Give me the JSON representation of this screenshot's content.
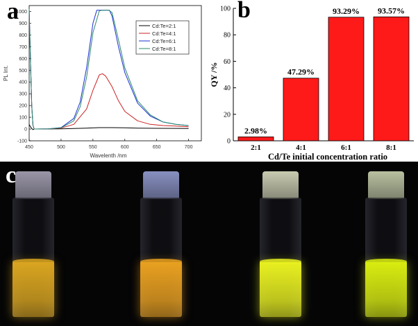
{
  "panels": {
    "a": "a",
    "b": "b",
    "c": "c"
  },
  "colors": {
    "bar_fill": "#ff1a1a",
    "bar_stroke": "#000000",
    "series": [
      "#000000",
      "#cc2222",
      "#1a2fd0",
      "#2a8a6a"
    ],
    "liquids": [
      "#d9a520",
      "#e8a020",
      "#e8f020",
      "#d8ec10"
    ],
    "caps": [
      "#9a96a8",
      "#8890c0",
      "#c8cab0",
      "#b8c0a0"
    ]
  },
  "chart_data": [
    {
      "type": "line",
      "title": "",
      "xlabel": "Wavelenth /nm",
      "ylabel": "PL Int.",
      "xlim": [
        450,
        720
      ],
      "ylim": [
        -100,
        1050
      ],
      "xticks": [
        450,
        500,
        550,
        600,
        650,
        700
      ],
      "xtick_labels": [
        "450",
        "500",
        "550",
        "600",
        "650",
        "700"
      ],
      "yticks": [
        -100,
        0,
        100,
        200,
        300,
        400,
        500,
        600,
        700,
        800,
        900,
        1000
      ],
      "ytick_labels": [
        "-100",
        "0",
        "100",
        "200",
        "300",
        "400",
        "500",
        "600",
        "700",
        "800",
        "900",
        "1000"
      ],
      "legend_position": "top-right",
      "series": [
        {
          "name": "Cd:Te=2:1",
          "x": [
            450,
            452,
            454,
            456,
            458,
            460,
            470,
            500,
            520,
            540,
            560,
            580,
            600,
            620,
            650,
            700
          ],
          "y": [
            40,
            20,
            5,
            -5,
            0,
            0,
            0,
            2,
            5,
            8,
            12,
            12,
            10,
            8,
            6,
            5
          ]
        },
        {
          "name": "Cd:Te=4:1",
          "x": [
            450,
            452,
            454,
            456,
            458,
            460,
            480,
            500,
            520,
            540,
            550,
            560,
            565,
            570,
            580,
            590,
            600,
            620,
            640,
            660,
            680,
            700
          ],
          "y": [
            1020,
            600,
            200,
            30,
            0,
            0,
            2,
            8,
            40,
            170,
            330,
            460,
            470,
            450,
            360,
            240,
            150,
            70,
            40,
            30,
            25,
            20
          ]
        },
        {
          "name": "Cd:Te=6:1",
          "x": [
            450,
            452,
            454,
            456,
            458,
            460,
            480,
            500,
            520,
            530,
            540,
            550,
            556,
            560,
            565,
            570,
            576,
            580,
            590,
            600,
            620,
            640,
            660,
            680,
            700
          ],
          "y": [
            1020,
            600,
            200,
            30,
            0,
            0,
            2,
            12,
            90,
            230,
            520,
            900,
            1010,
            1010,
            1010,
            1010,
            1010,
            960,
            700,
            480,
            220,
            110,
            60,
            40,
            30
          ],
          "style": "solid"
        },
        {
          "name": "Cd:Te=8:1",
          "x": [
            450,
            452,
            454,
            456,
            458,
            460,
            480,
            500,
            520,
            530,
            540,
            550,
            560,
            565,
            570,
            575,
            580,
            590,
            600,
            620,
            640,
            660,
            680,
            700
          ],
          "y": [
            1020,
            600,
            200,
            30,
            0,
            0,
            2,
            10,
            70,
            190,
            440,
            820,
            1005,
            1010,
            1010,
            1010,
            990,
            760,
            520,
            240,
            120,
            60,
            40,
            30
          ]
        }
      ]
    },
    {
      "type": "bar",
      "title": "",
      "xlabel": "Cd/Te initial concentration ratio",
      "ylabel": "QY /%",
      "ylim": [
        0,
        100
      ],
      "yticks": [
        0,
        20,
        40,
        60,
        80,
        100
      ],
      "ytick_labels": [
        "0",
        "20",
        "40",
        "60",
        "80",
        "100"
      ],
      "categories": [
        "2:1",
        "4:1",
        "6:1",
        "8:1"
      ],
      "values": [
        2.98,
        47.29,
        93.29,
        93.57
      ],
      "data_labels": [
        "2.98%",
        "47.29%",
        "93.29%",
        "93.57%"
      ]
    }
  ]
}
